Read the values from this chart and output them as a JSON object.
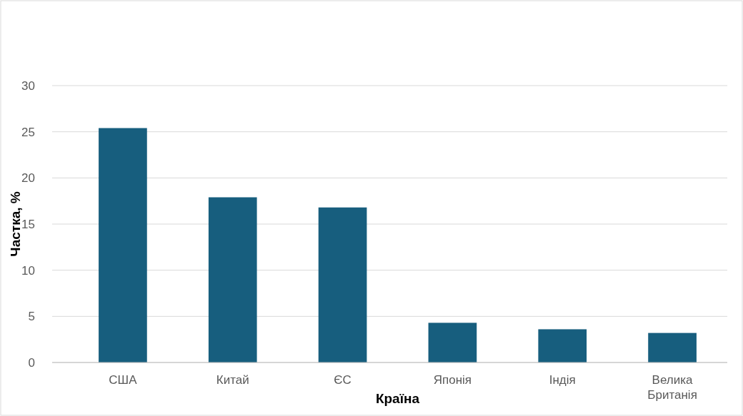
{
  "chart_data": {
    "type": "bar",
    "xlabel": "Країна",
    "ylabel": "Частка, %",
    "categories": [
      "США",
      "Китай",
      "ЄС",
      "Японія",
      "Індія",
      "Велика Британія"
    ],
    "values": [
      25.4,
      17.9,
      16.8,
      4.3,
      3.6,
      3.2
    ],
    "color": "#175e7e",
    "ylim": [
      0,
      30
    ],
    "yticks": [
      0,
      5,
      10,
      15,
      20,
      25,
      30
    ],
    "grid": "y"
  }
}
